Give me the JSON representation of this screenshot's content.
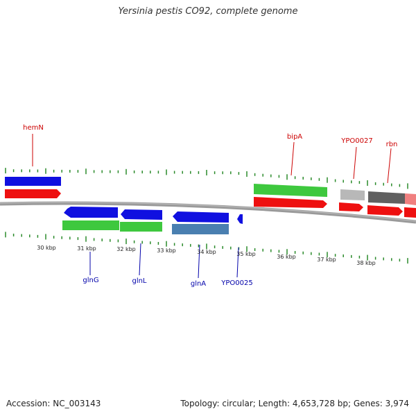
{
  "title": "Yersinia pestis CO92, complete genome",
  "footer": {
    "accession": "Accession: NC_003143",
    "summary": "Topology: circular; Length: 4,653,728 bp; Genes: 3,974"
  },
  "colors": {
    "blue": "#1010e0",
    "red": "#ee1010",
    "green": "#3ec83e",
    "steel": "#4a7fb0",
    "grey_light": "#b8b8b8",
    "grey_dark": "#606060",
    "pink": "#f08080",
    "tick": "#2a8a2a",
    "backbone": "#808080",
    "label_top": "#cc0000",
    "label_bottom": "#0000aa"
  },
  "ticks": [
    "30 kbp",
    "31 kbp",
    "32 kbp",
    "33 kbp",
    "34 kbp",
    "35 kbp",
    "36 kbp",
    "37 kbp",
    "38 kbp"
  ],
  "gene_labels_top": [
    "hemN",
    "bipA",
    "YPO0027",
    "rbn"
  ],
  "gene_labels_bottom": [
    "glnG",
    "glnL",
    "glnA",
    "YPO0025"
  ]
}
